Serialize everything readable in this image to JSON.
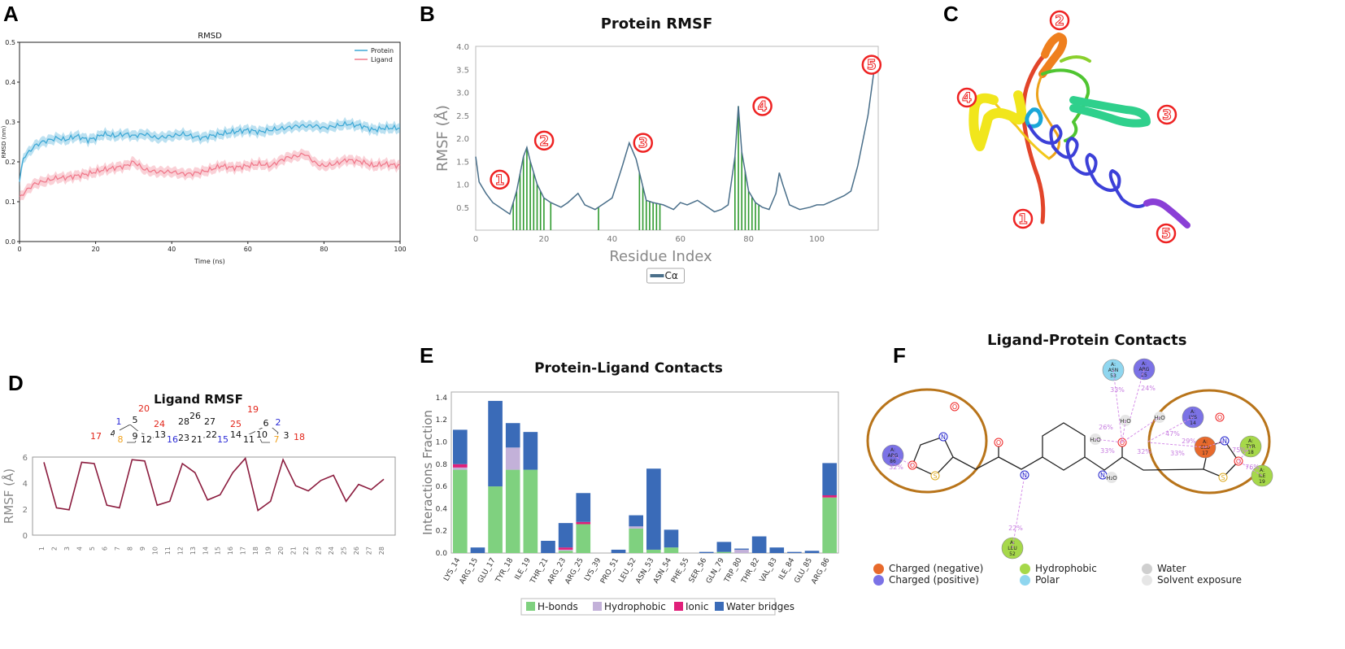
{
  "panels": {
    "a": "A",
    "b": "B",
    "c": "C",
    "d": "D",
    "e": "E",
    "f": "F"
  },
  "chart_data": [
    {
      "id": "A",
      "type": "line",
      "title": "RMSD",
      "xlabel": "Time (ns)",
      "ylabel": "RMSD (nm)",
      "xlim": [
        0,
        100
      ],
      "ylim": [
        0,
        0.5
      ],
      "xticks": [
        0,
        20,
        40,
        60,
        80,
        100
      ],
      "yticks": [
        0.0,
        0.1,
        0.2,
        0.3,
        0.4,
        0.5
      ],
      "legend": "top-right",
      "series": [
        {
          "name": "Protein",
          "color": "#3fa9d6",
          "x": [
            0,
            1,
            2,
            4,
            6,
            8,
            10,
            12,
            15,
            18,
            20,
            22,
            25,
            28,
            30,
            33,
            36,
            40,
            43,
            45,
            48,
            50,
            53,
            56,
            60,
            63,
            66,
            70,
            73,
            75,
            78,
            80,
            83,
            86,
            90,
            93,
            96,
            100
          ],
          "values": [
            0.15,
            0.21,
            0.22,
            0.24,
            0.25,
            0.255,
            0.26,
            0.255,
            0.265,
            0.255,
            0.26,
            0.27,
            0.265,
            0.27,
            0.265,
            0.27,
            0.26,
            0.265,
            0.27,
            0.265,
            0.26,
            0.265,
            0.27,
            0.275,
            0.28,
            0.275,
            0.28,
            0.285,
            0.29,
            0.29,
            0.29,
            0.285,
            0.29,
            0.295,
            0.29,
            0.28,
            0.285,
            0.285
          ]
        },
        {
          "name": "Ligand",
          "color": "#f07a8c",
          "x": [
            0,
            1,
            2,
            4,
            6,
            8,
            10,
            12,
            15,
            18,
            20,
            22,
            25,
            28,
            30,
            33,
            36,
            40,
            43,
            45,
            48,
            50,
            53,
            56,
            60,
            63,
            66,
            70,
            73,
            75,
            78,
            80,
            83,
            86,
            90,
            93,
            96,
            100
          ],
          "values": [
            0.11,
            0.12,
            0.13,
            0.145,
            0.15,
            0.155,
            0.16,
            0.16,
            0.165,
            0.17,
            0.175,
            0.18,
            0.185,
            0.19,
            0.2,
            0.18,
            0.175,
            0.175,
            0.17,
            0.17,
            0.175,
            0.18,
            0.19,
            0.185,
            0.19,
            0.195,
            0.19,
            0.21,
            0.215,
            0.22,
            0.195,
            0.19,
            0.195,
            0.205,
            0.2,
            0.19,
            0.195,
            0.19
          ]
        }
      ]
    },
    {
      "id": "B",
      "type": "line",
      "title": "Protein RMSF",
      "xlabel": "Residue Index",
      "ylabel": "RMSF (Å)",
      "xlim": [
        0,
        118
      ],
      "ylim": [
        0,
        4.0
      ],
      "xticks": [
        0,
        20,
        40,
        60,
        80,
        100
      ],
      "yticks": [
        0.5,
        1.0,
        1.5,
        2.0,
        2.5,
        3.0,
        3.5,
        4.0
      ],
      "legend_label": "Cα",
      "series": [
        {
          "name": "Cα",
          "color": "#4a6f8a",
          "x": [
            0,
            1,
            3,
            5,
            8,
            10,
            12,
            14,
            15,
            16,
            18,
            20,
            22,
            25,
            27,
            30,
            32,
            35,
            38,
            40,
            43,
            45,
            47,
            50,
            52,
            55,
            58,
            60,
            62,
            65,
            68,
            70,
            72,
            74,
            76,
            77,
            78,
            80,
            82,
            84,
            86,
            88,
            89,
            90,
            92,
            95,
            98,
            100,
            102,
            105,
            108,
            110,
            112,
            115,
            117
          ],
          "values": [
            1.6,
            1.05,
            0.8,
            0.6,
            0.45,
            0.35,
            0.85,
            1.6,
            1.8,
            1.5,
            1.0,
            0.7,
            0.6,
            0.5,
            0.6,
            0.8,
            0.55,
            0.45,
            0.6,
            0.7,
            1.4,
            1.9,
            1.55,
            0.65,
            0.6,
            0.55,
            0.45,
            0.6,
            0.55,
            0.65,
            0.5,
            0.4,
            0.45,
            0.55,
            1.6,
            2.7,
            1.7,
            0.85,
            0.6,
            0.5,
            0.45,
            0.8,
            1.25,
            1.0,
            0.55,
            0.45,
            0.5,
            0.55,
            0.55,
            0.65,
            0.75,
            0.85,
            1.4,
            2.5,
            3.6
          ]
        }
      ],
      "highlight_residues": [
        11,
        12,
        13,
        14,
        15,
        16,
        17,
        18,
        19,
        20,
        22,
        36,
        48,
        49,
        50,
        51,
        52,
        53,
        54,
        76,
        77,
        78,
        79,
        80,
        81,
        82,
        83
      ]
    },
    {
      "id": "D",
      "type": "line",
      "title": "Ligand RMSF",
      "xlabel": "",
      "ylabel": "RMSF (Å)",
      "ylim": [
        0,
        6
      ],
      "yticks": [
        0,
        2,
        4,
        6
      ],
      "categories": [
        "1",
        "2",
        "3",
        "4",
        "5",
        "6",
        "7",
        "8",
        "9",
        "10",
        "11",
        "12",
        "13",
        "14",
        "15",
        "16",
        "17",
        "18",
        "19",
        "20",
        "21",
        "22",
        "23",
        "24",
        "25",
        "26",
        "27",
        "28"
      ],
      "series": [
        {
          "name": "Ligand",
          "color": "#8b1c3e",
          "values": [
            5.6,
            2.1,
            1.95,
            5.6,
            5.5,
            2.3,
            2.1,
            5.8,
            5.7,
            2.3,
            2.6,
            5.5,
            4.8,
            2.7,
            3.1,
            4.8,
            5.9,
            1.9,
            2.6,
            5.8,
            3.8,
            3.4,
            4.2,
            4.6,
            2.6,
            3.9,
            3.5,
            4.3
          ]
        }
      ]
    },
    {
      "id": "E",
      "type": "bar",
      "stacked": true,
      "title": "Protein-Ligand Contacts",
      "xlabel": "",
      "ylabel": "Interactions Fraction",
      "ylim": [
        0,
        1.45
      ],
      "yticks": [
        0.0,
        0.2,
        0.4,
        0.6,
        0.8,
        1.0,
        1.2,
        1.4
      ],
      "categories": [
        "LYS_14",
        "ARG_15",
        "GLU_17",
        "TYR_18",
        "ILE_19",
        "THR_21",
        "ARG_23",
        "ARG_25",
        "LYS_39",
        "PRO_51",
        "LEU_52",
        "ASN_53",
        "ASN_54",
        "PHE_55",
        "SER_56",
        "GLN_79",
        "TRP_80",
        "THR_82",
        "VAL_83",
        "ILE_84",
        "GLU_85",
        "ARG_86"
      ],
      "series": [
        {
          "name": "H-bonds",
          "color": "#7fd17f",
          "values": [
            0.75,
            0,
            0.6,
            0.75,
            0.75,
            0,
            0.02,
            0.26,
            0,
            0,
            0.22,
            0.03,
            0.05,
            0,
            0,
            0.01,
            0,
            0,
            0,
            0,
            0,
            0.5
          ]
        },
        {
          "name": "Hydrophobic",
          "color": "#c3b1d9",
          "values": [
            0.02,
            0,
            0,
            0.2,
            0,
            0,
            0.01,
            0,
            0,
            0,
            0.02,
            0,
            0,
            0,
            0,
            0,
            0.03,
            0,
            0,
            0,
            0,
            0
          ]
        },
        {
          "name": "Ionic",
          "color": "#e0207a",
          "values": [
            0.03,
            0,
            0,
            0,
            0,
            0,
            0.02,
            0.02,
            0,
            0,
            0,
            0,
            0,
            0,
            0,
            0,
            0,
            0,
            0,
            0,
            0,
            0.02
          ]
        },
        {
          "name": "Water bridges",
          "color": "#3a6bb8",
          "values": [
            0.31,
            0.05,
            0.77,
            0.22,
            0.34,
            0.11,
            0.22,
            0.26,
            0,
            0.03,
            0.1,
            0.73,
            0.16,
            0,
            0.01,
            0.09,
            0.01,
            0.15,
            0.05,
            0.01,
            0.02,
            0.29
          ]
        }
      ],
      "legend": "bottom"
    }
  ],
  "panel_c": {
    "markers": [
      "1",
      "2",
      "3",
      "4",
      "5"
    ]
  },
  "panel_d_structure": {
    "numbers_black": [
      "4",
      "5",
      "9",
      "12",
      "13",
      "26",
      "28",
      "23",
      "21",
      "27",
      "22",
      "14",
      "11",
      "6",
      "10",
      "3"
    ],
    "numbers_red": [
      "17",
      "20",
      "24",
      "25",
      "19",
      "18"
    ],
    "numbers_blue": [
      "1",
      "16",
      "15",
      "2"
    ],
    "numbers_orange": [
      "8",
      "7"
    ]
  },
  "panel_f": {
    "title": "Ligand-Protein Contacts",
    "residues": [
      {
        "chain": "A:",
        "name": "ARG",
        "num": "86",
        "color": "#7b72e6"
      },
      {
        "chain": "A:",
        "name": "ASN",
        "num": "53",
        "color": "#8fd6ef"
      },
      {
        "chain": "A:",
        "name": "ARG",
        "num": "25",
        "color": "#7b72e6"
      },
      {
        "chain": "A:",
        "name": "LYS",
        "num": "14",
        "color": "#7b72e6"
      },
      {
        "chain": "A:",
        "name": "GLU",
        "num": "17",
        "color": "#e86a2c"
      },
      {
        "chain": "A:",
        "name": "TYR",
        "num": "18",
        "color": "#a6d84a"
      },
      {
        "chain": "A:",
        "name": "ILE",
        "num": "19",
        "color": "#a6d84a"
      },
      {
        "chain": "A:",
        "name": "LEU",
        "num": "52",
        "color": "#a6d84a"
      }
    ],
    "percents": [
      "32%",
      "33%",
      "24%",
      "26%",
      "47%",
      "32%",
      "33%",
      "29%",
      "33%",
      "75%",
      "76%",
      "22%"
    ],
    "water_label": "H₂O",
    "legend": [
      {
        "label": "Charged (negative)",
        "color": "#e86a2c"
      },
      {
        "label": "Charged (positive)",
        "color": "#7b72e6"
      },
      {
        "label": "Hydrophobic",
        "color": "#a6d84a"
      },
      {
        "label": "Polar",
        "color": "#8fd6ef"
      },
      {
        "label": "Water",
        "color": "#cfcfcf"
      },
      {
        "label": "Solvent exposure",
        "color": "#e6e6e6"
      }
    ]
  }
}
